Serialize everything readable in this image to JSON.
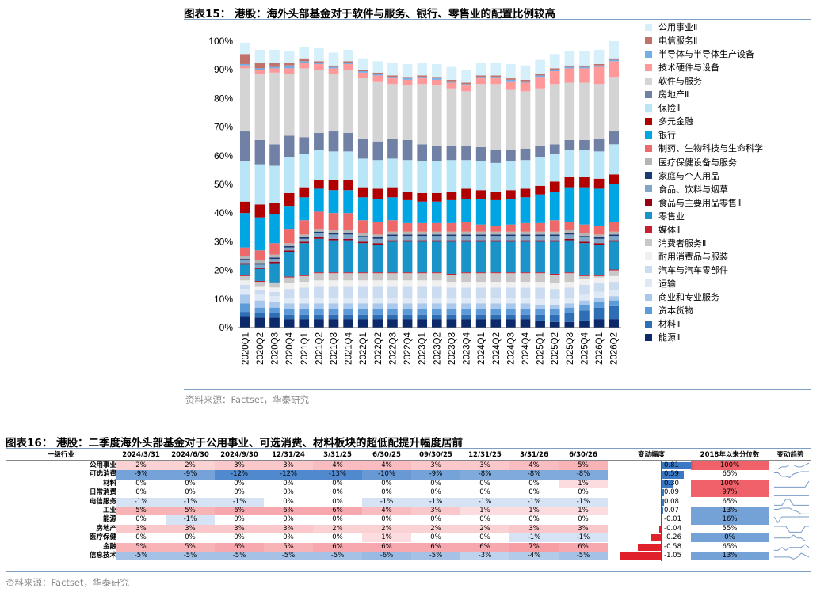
{
  "fig15": {
    "title": "图表15： 港股：海外头部基金对于软件与服务、银行、零售业的配置比例较高",
    "source": "资料来源：Factset，华泰研究"
  },
  "fig16": {
    "title": "图表16： 港股：二季度海外头部基金对于公用事业、可选消费、材料板块的超低配提升幅度居前",
    "source": "资料来源：Factset，华泰研究"
  },
  "chart_data": {
    "type": "bar",
    "stacked": true,
    "ylim": [
      0,
      100
    ],
    "yticks": [
      "0%",
      "10%",
      "20%",
      "30%",
      "40%",
      "50%",
      "60%",
      "70%",
      "80%",
      "90%",
      "100%"
    ],
    "legend_position": "right",
    "categories": [
      "2020Q1",
      "2020Q2",
      "2020Q3",
      "2020Q4",
      "2021Q1",
      "2021Q2",
      "2021Q3",
      "2021Q4",
      "2022Q1",
      "2022Q2",
      "2022Q3",
      "2022Q4",
      "2023Q1",
      "2023Q2",
      "2023Q3",
      "2023Q4",
      "2024Q1",
      "2024Q2",
      "2024Q3",
      "2024Q4",
      "2025Q1",
      "2025Q2",
      "2025Q3",
      "2025Q4",
      "2026Q1",
      "2026Q2"
    ],
    "series": [
      {
        "name": "能源Ⅱ",
        "color": "#0c2a6b",
        "values": [
          4,
          3.5,
          3.5,
          3,
          3,
          3,
          3,
          3,
          3,
          3,
          3,
          3,
          3,
          3,
          3,
          3,
          3,
          3,
          3,
          3,
          2.5,
          2,
          2,
          2.5,
          3,
          3
        ]
      },
      {
        "name": "材料Ⅱ",
        "color": "#2e6eb5",
        "values": [
          1.5,
          1.5,
          1.5,
          1.5,
          1.5,
          1.5,
          1.5,
          1.5,
          1.5,
          1.5,
          1.5,
          1.5,
          1.5,
          1.5,
          1.5,
          1.5,
          1.5,
          1.5,
          1.5,
          1.5,
          2,
          2.5,
          3,
          3.5,
          4,
          4.5
        ]
      },
      {
        "name": "资本货物",
        "color": "#5d9bd8",
        "values": [
          3,
          2,
          2,
          2,
          2,
          2,
          2,
          2,
          2,
          2,
          2,
          2,
          2,
          2,
          2,
          2,
          2,
          2,
          2,
          2,
          2,
          2,
          2,
          2,
          2,
          2
        ]
      },
      {
        "name": "商业和专业服务",
        "color": "#a9c8ec",
        "values": [
          3,
          2.5,
          2,
          2,
          2,
          2,
          2,
          2,
          2,
          2,
          2,
          2,
          2,
          2,
          2,
          2,
          2,
          2,
          2,
          2,
          1.5,
          1.5,
          1.5,
          1.5,
          1.5,
          1.5
        ]
      },
      {
        "name": "运输",
        "color": "#dfe9f6",
        "values": [
          2,
          2,
          2,
          2,
          2,
          2,
          2,
          2,
          2,
          2,
          2,
          2,
          2,
          2,
          2,
          2,
          2,
          2,
          2,
          2,
          2,
          2,
          2,
          2,
          2,
          2
        ]
      },
      {
        "name": "汽车与汽车零部件",
        "color": "#ccdcf0",
        "values": [
          1.5,
          1.5,
          1.5,
          3,
          3.5,
          4,
          4,
          4,
          4,
          4,
          4,
          4,
          4,
          4,
          3.5,
          3.5,
          3.5,
          3.5,
          3.5,
          3.5,
          4,
          3.5,
          3.5,
          3.5,
          3,
          3
        ]
      },
      {
        "name": "耐用消费品与服装",
        "color": "#f0f0f0",
        "values": [
          1.5,
          1.5,
          1.5,
          2,
          2,
          2,
          2,
          2,
          2,
          2,
          2,
          2,
          2,
          2,
          2,
          2,
          2,
          2,
          2,
          2,
          2,
          2,
          2,
          2,
          2,
          2
        ]
      },
      {
        "name": "消费者服务Ⅱ",
        "color": "#c8c8c8",
        "values": [
          1.5,
          1.5,
          1.5,
          2,
          2,
          2.5,
          2.5,
          2.5,
          2.5,
          2.5,
          2.5,
          2.5,
          2.5,
          2.5,
          2.5,
          3,
          3,
          3,
          3,
          3,
          3,
          3,
          3,
          1,
          0.5,
          2
        ]
      },
      {
        "name": "媒体Ⅱ",
        "color": "#c81f2e",
        "values": [
          0.3,
          0.3,
          0.3,
          0.3,
          0.3,
          0.3,
          0.3,
          0.3,
          0.3,
          0.3,
          0.3,
          0.3,
          0.3,
          0.3,
          0.3,
          0.3,
          0.3,
          0.3,
          0.3,
          0.3,
          0.3,
          0.3,
          0.3,
          0.3,
          0.3,
          0.3
        ]
      },
      {
        "name": "零售业",
        "color": "#1a93c9",
        "values": [
          3.7,
          4.2,
          6.7,
          8.7,
          11.2,
          11.7,
          11.2,
          11.2,
          10.2,
          9.7,
          10.7,
          10.7,
          10.7,
          10.7,
          11.2,
          10.7,
          10.7,
          10.7,
          10.7,
          10.7,
          10.7,
          11.2,
          11.2,
          11.2,
          10.7,
          9.7
        ]
      },
      {
        "name": "食品与主要用品零售Ⅱ",
        "color": "#990016",
        "values": [
          0.5,
          0.5,
          0.5,
          0.5,
          0.5,
          0.5,
          0.5,
          0.5,
          0.5,
          0.5,
          0.5,
          0.5,
          0.5,
          0.5,
          0.5,
          0.5,
          0.5,
          0.5,
          0.5,
          0.5,
          0.5,
          0.5,
          0.5,
          0.5,
          0.5,
          0.5
        ]
      },
      {
        "name": "食品、饮料与烟草",
        "color": "#7fa6c6",
        "values": [
          1,
          1,
          1,
          1,
          1,
          1.5,
          1.5,
          1.5,
          1.5,
          1.5,
          1.5,
          1.5,
          1.5,
          1.5,
          1.5,
          1.5,
          1.5,
          1.5,
          1.5,
          1.5,
          1.5,
          1.5,
          1.5,
          1.5,
          1.5,
          1.5
        ]
      },
      {
        "name": "家庭与个人用品",
        "color": "#1a3a73",
        "values": [
          0.5,
          0.5,
          0.5,
          0.5,
          0.5,
          0.5,
          0.5,
          0.5,
          0.5,
          0.5,
          0.5,
          0.5,
          0.5,
          0.5,
          0.5,
          0.5,
          0.5,
          0.5,
          0.5,
          0.5,
          0.5,
          0.5,
          0.5,
          0.5,
          0.5,
          0.5
        ]
      },
      {
        "name": "医疗保健设备与服务",
        "color": "#b4b4b4",
        "values": [
          1,
          1,
          1,
          1,
          1,
          1,
          1,
          1,
          1,
          1,
          1,
          1,
          1,
          1,
          1,
          1,
          1,
          1,
          1,
          1,
          1,
          1,
          1,
          1,
          1,
          1
        ]
      },
      {
        "name": "制药、生物科技与生命科学",
        "color": "#ee6a6a",
        "values": [
          3,
          3.5,
          4,
          5,
          5,
          6,
          6,
          6,
          4.5,
          4.5,
          4,
          3,
          3,
          3,
          3,
          3.5,
          2.5,
          2,
          2.5,
          3,
          3,
          4,
          3,
          3,
          3,
          3.5
        ]
      },
      {
        "name": "银行",
        "color": "#00a6e3",
        "values": [
          12,
          11.5,
          10,
          8,
          8,
          8,
          8,
          8,
          8,
          8,
          8,
          8,
          7.5,
          7.5,
          8,
          8,
          9,
          9,
          9,
          9,
          10,
          10,
          12,
          13,
          13,
          13
        ]
      },
      {
        "name": "多元金融",
        "color": "#b00000",
        "values": [
          4,
          4.5,
          4,
          4.5,
          3.5,
          3,
          3.5,
          3.5,
          3.5,
          3.5,
          3.5,
          3,
          3,
          3,
          3,
          3.5,
          3,
          3,
          3,
          3,
          3,
          3.5,
          3.5,
          3.5,
          3.5,
          3.5
        ]
      },
      {
        "name": "保险Ⅱ",
        "color": "#b8e6f7",
        "values": [
          14,
          14,
          13,
          12.5,
          11.5,
          10.5,
          10,
          10,
          10,
          10,
          10,
          11,
          11,
          11,
          11,
          10,
          10,
          10,
          10,
          10,
          10,
          9.5,
          9.5,
          9.5,
          9.5,
          10.5
        ]
      },
      {
        "name": "房地产Ⅱ",
        "color": "#7181a6",
        "values": [
          10.5,
          8.5,
          7.5,
          7.5,
          6,
          6,
          7,
          6.5,
          7,
          6.5,
          7,
          7,
          6,
          5.5,
          5,
          5,
          5,
          4.5,
          4,
          4,
          4,
          3.5,
          3.5,
          3.5,
          4.5,
          4.5
        ]
      },
      {
        "name": "软件与服务",
        "color": "#d4d4d4",
        "values": [
          22,
          23,
          25,
          21.5,
          24,
          22,
          20,
          22,
          21,
          21,
          19,
          19,
          21,
          21,
          20,
          19,
          22,
          23,
          21,
          20,
          20,
          21,
          20,
          20,
          19,
          19
        ]
      },
      {
        "name": "技术硬件与设备",
        "color": "#ff9999",
        "values": [
          1,
          1.5,
          1.5,
          2,
          2,
          2,
          2,
          2,
          2,
          2,
          2,
          2,
          2,
          2,
          2,
          2,
          2,
          2,
          3,
          3,
          4,
          4.5,
          5,
          5,
          6,
          5.5
        ]
      },
      {
        "name": "半导体与半导体生产设备",
        "color": "#73aee6",
        "values": [
          0.5,
          0.5,
          0.5,
          1,
          0.5,
          0.5,
          0.5,
          0.5,
          0.5,
          0.5,
          0.5,
          0.5,
          0.5,
          0.5,
          0.5,
          0.5,
          0.5,
          0.5,
          0.5,
          0.5,
          0.5,
          0.5,
          0.5,
          0.5,
          0.5,
          0.5
        ]
      },
      {
        "name": "电信服务Ⅱ",
        "color": "#c0726a",
        "values": [
          3.5,
          2,
          1.5,
          1,
          1,
          0.5,
          0.5,
          0.5,
          0.5,
          0.5,
          0.5,
          0.5,
          0.5,
          0.5,
          0.5,
          0.5,
          0.5,
          0.5,
          0.5,
          0.5,
          0.5,
          0.5,
          0.5,
          0.5,
          0.5,
          0.5
        ]
      },
      {
        "name": "公用事业Ⅱ",
        "color": "#d6f0fb",
        "values": [
          4,
          4.5,
          4.5,
          4,
          4,
          4.5,
          4.5,
          4,
          4,
          4,
          4.5,
          4.5,
          4.5,
          4.5,
          4.5,
          4.5,
          4.5,
          4.5,
          5,
          5,
          5,
          5,
          5,
          5,
          5,
          6
        ]
      }
    ]
  },
  "table": {
    "headers": [
      "一级行业",
      "2024/3/31",
      "2024/6/30",
      "2024/9/30",
      "12/31/24",
      "3/31/25",
      "6/30/25",
      "09/30/25",
      "12/31/25",
      "3/31/26",
      "6/30/26",
      "变动幅度",
      "2018年以来分位数",
      "变动趋势"
    ],
    "rows": [
      {
        "industry": "公用事业",
        "cells": [
          "2%",
          "2%",
          "3%",
          "3%",
          "4%",
          "4%",
          "3%",
          "3%",
          "4%",
          "5%"
        ],
        "change": "0.81",
        "pct": "100%"
      },
      {
        "industry": "可选消费",
        "cells": [
          "-9%",
          "-9%",
          "-12%",
          "-12%",
          "-13%",
          "-10%",
          "-9%",
          "-8%",
          "-8%",
          "-8%"
        ],
        "change": "0.59",
        "pct": "65%"
      },
      {
        "industry": "材料",
        "cells": [
          "0%",
          "0%",
          "0%",
          "0%",
          "0%",
          "0%",
          "0%",
          "0%",
          "0%",
          "1%"
        ],
        "change": "0.30",
        "pct": "100%"
      },
      {
        "industry": "日常消费",
        "cells": [
          "0%",
          "0%",
          "0%",
          "0%",
          "0%",
          "0%",
          "0%",
          "0%",
          "0%",
          "0%"
        ],
        "change": "0.09",
        "pct": "97%"
      },
      {
        "industry": "电信服务",
        "cells": [
          "-1%",
          "-1%",
          "-1%",
          "0%",
          "0%",
          "-1%",
          "-1%",
          "-1%",
          "-1%",
          "-1%"
        ],
        "change": "0.08",
        "pct": "65%"
      },
      {
        "industry": "工业",
        "cells": [
          "5%",
          "5%",
          "6%",
          "6%",
          "6%",
          "4%",
          "3%",
          "1%",
          "1%",
          "1%"
        ],
        "change": "0.07",
        "pct": "13%"
      },
      {
        "industry": "能源",
        "cells": [
          "0%",
          "-1%",
          "0%",
          "0%",
          "0%",
          "0%",
          "0%",
          "0%",
          "0%",
          "0%"
        ],
        "change": "-0.01",
        "pct": "16%"
      },
      {
        "industry": "房地产",
        "cells": [
          "3%",
          "3%",
          "3%",
          "3%",
          "2%",
          "2%",
          "2%",
          "2%",
          "3%",
          "3%"
        ],
        "change": "-0.04",
        "pct": "55%"
      },
      {
        "industry": "医疗保健",
        "cells": [
          "0%",
          "0%",
          "0%",
          "0%",
          "0%",
          "1%",
          "0%",
          "0%",
          "-1%",
          "-1%"
        ],
        "change": "-0.26",
        "pct": "0%"
      },
      {
        "industry": "金融",
        "cells": [
          "5%",
          "5%",
          "6%",
          "5%",
          "6%",
          "6%",
          "6%",
          "6%",
          "7%",
          "6%"
        ],
        "change": "-0.58",
        "pct": "65%"
      },
      {
        "industry": "信息技术",
        "cells": [
          "-5%",
          "-5%",
          "-5%",
          "-5%",
          "-5%",
          "-6%",
          "-5%",
          "-3%",
          "-4%",
          "-5%"
        ],
        "change": "-1.05",
        "pct": "13%"
      }
    ]
  },
  "colors": {
    "accent": "#7f9fc2",
    "positive": "#f05a64",
    "negative": "#3d7cc9",
    "bar_pos": "#3a78c3",
    "bar_neg": "#e0202a"
  }
}
